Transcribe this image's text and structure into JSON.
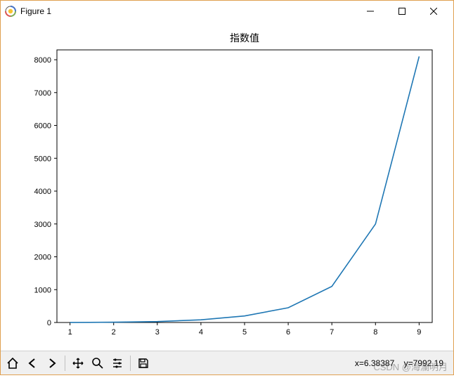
{
  "window": {
    "title": "Figure 1",
    "minimize_tip": "Minimize",
    "maximize_tip": "Maximize",
    "close_tip": "Close"
  },
  "chart": {
    "type": "line",
    "title": "指数值",
    "title_fontsize": 14,
    "x": [
      1,
      2,
      3,
      4,
      5,
      6,
      7,
      8,
      9
    ],
    "y": [
      3,
      9,
      27,
      81,
      200,
      450,
      1100,
      3000,
      8100
    ],
    "line_color": "#1f77b4",
    "line_width": 1.6,
    "xlim": [
      1,
      9
    ],
    "xticks": [
      1,
      2,
      3,
      4,
      5,
      6,
      7,
      8,
      9
    ],
    "ylim": [
      0,
      8300
    ],
    "yticks": [
      0,
      1000,
      2000,
      3000,
      4000,
      5000,
      6000,
      7000,
      8000
    ],
    "background_color": "#ffffff",
    "axis_color": "#000000",
    "tick_fontsize": 11,
    "tick_length": 4
  },
  "toolbar": {
    "home_tip": "Reset original view",
    "back_tip": "Back",
    "forward_tip": "Forward",
    "pan_tip": "Pan",
    "zoom_tip": "Zoom",
    "configure_tip": "Configure subplots",
    "save_tip": "Save the figure",
    "cursor_x_label": "x=",
    "cursor_x_value": "6.38387",
    "cursor_y_label": "y=",
    "cursor_y_value": "7992.19"
  },
  "watermark": "CSDN @海瀾明月"
}
